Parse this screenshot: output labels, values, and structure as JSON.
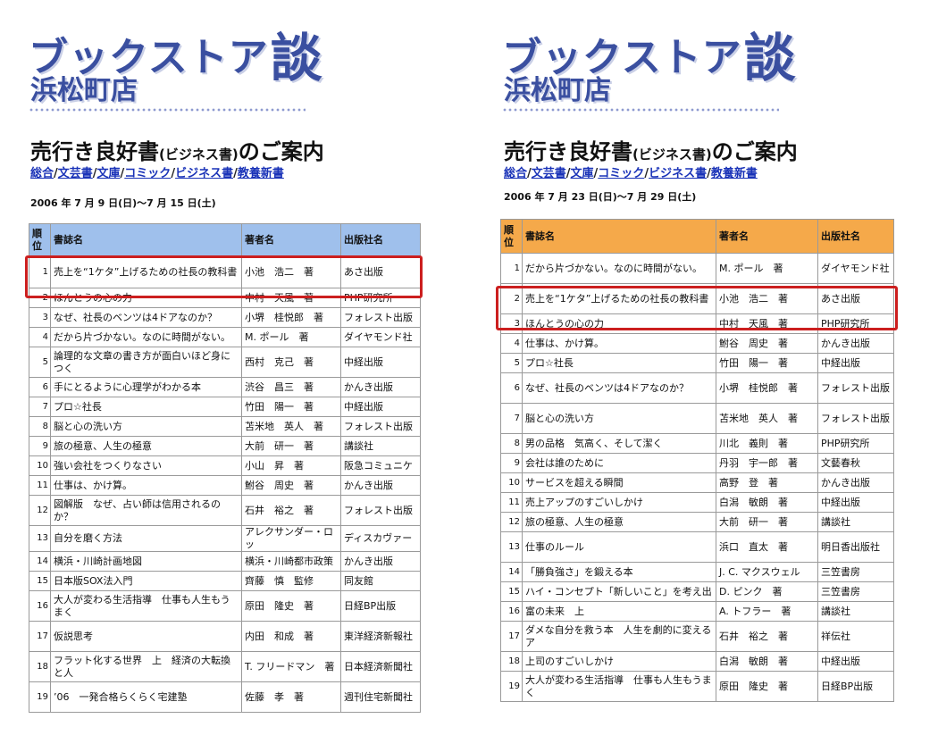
{
  "colors": {
    "brand": "#3a4fa0",
    "left_header": "#9fc0ec",
    "right_header": "#f5a94a",
    "highlight": "#cc1f1f",
    "link": "#1a33b8"
  },
  "panels": [
    {
      "brand_main": "ブックストア",
      "brand_dan": "談",
      "brand_sub": "浜松町店",
      "heading_main": "売行き良好書",
      "heading_paren": "(ビジネス書)",
      "heading_tail": "のご案内",
      "nav": [
        "総合",
        "文芸書",
        "文庫",
        "コミック",
        "ビジネス書",
        "教養新書"
      ],
      "nav_sep": "/",
      "date": "2006 年 7 月 9 日(日)～7 月 15 日(土)",
      "columns": [
        "順位",
        "書誌名",
        "著者名",
        "出版社名"
      ],
      "rows": [
        {
          "rank": "1",
          "title": "売上を“1ケタ”上げるための社長の教科書",
          "author": "小池　浩二　著",
          "publisher": "あさ出版"
        },
        {
          "rank": "2",
          "title": "ほんとうの心の力",
          "author": "中村　天風　著",
          "publisher": "PHP研究所"
        },
        {
          "rank": "3",
          "title": "なぜ、社長のベンツは4ドアなのか？",
          "author": "小堺　桂悦郎　著",
          "publisher": "フォレスト出版"
        },
        {
          "rank": "4",
          "title": "だから片づかない。なのに時間がない。",
          "author": "M. ポール　著",
          "publisher": "ダイヤモンド社"
        },
        {
          "rank": "5",
          "title": "論理的な文章の書き方が面白いほど身につく",
          "author": "西村　克己　著",
          "publisher": "中経出版"
        },
        {
          "rank": "6",
          "title": "手にとるように心理学がわかる本",
          "author": "渋谷　昌三　著",
          "publisher": "かんき出版"
        },
        {
          "rank": "7",
          "title": "プロ☆社長",
          "author": "竹田　陽一　著",
          "publisher": "中経出版"
        },
        {
          "rank": "8",
          "title": "脳と心の洗い方",
          "author": "苫米地　英人　著",
          "publisher": "フォレスト出版"
        },
        {
          "rank": "9",
          "title": "旅の極意、人生の極意",
          "author": "大前　研一　著",
          "publisher": "講談社"
        },
        {
          "rank": "10",
          "title": "強い会社をつくりなさい",
          "author": "小山　昇　著",
          "publisher": "阪急コミュニケ"
        },
        {
          "rank": "11",
          "title": "仕事は、かけ算。",
          "author": "鮒谷　周史　著",
          "publisher": "かんき出版"
        },
        {
          "rank": "12",
          "title": "図解版　なぜ、占い師は信用されるのか？",
          "author": "石井　裕之　著",
          "publisher": "フォレスト出版"
        },
        {
          "rank": "13",
          "title": "自分を磨く方法",
          "author": "アレクサンダー・ロッ",
          "publisher": "ディスカヴァー"
        },
        {
          "rank": "14",
          "title": "横浜・川崎計画地図",
          "author": "横浜・川崎都市政策",
          "publisher": "かんき出版"
        },
        {
          "rank": "15",
          "title": "日本版SOX法入門",
          "author": "齊藤　慎　監修",
          "publisher": "同友館"
        },
        {
          "rank": "16",
          "title": "大人が変わる生活指導　仕事も人生もうまく",
          "author": "原田　隆史　著",
          "publisher": "日経BP出版"
        },
        {
          "rank": "17",
          "title": "仮説思考",
          "author": "内田　和成　著",
          "publisher": "東洋経済新報社"
        },
        {
          "rank": "18",
          "title": "フラット化する世界　上　経済の大転換と人",
          "author": "T. フリードマン　著",
          "publisher": "日本経済新聞社"
        },
        {
          "rank": "19",
          "title": "’06　一発合格らくらく宅建塾",
          "author": "佐藤　孝　著",
          "publisher": "週刊住宅新聞社"
        }
      ]
    },
    {
      "brand_main": "ブックストア",
      "brand_dan": "談",
      "brand_sub": "浜松町店",
      "heading_main": "売行き良好書",
      "heading_paren": "(ビジネス書)",
      "heading_tail": "のご案内",
      "nav": [
        "総合",
        "文芸書",
        "文庫",
        "コミック",
        "ビジネス書",
        "教養新書"
      ],
      "nav_sep": "/",
      "date": "2006 年 7 月 23 日(日)～7 月 29 日(土)",
      "columns": [
        "順位",
        "書誌名",
        "著者名",
        "出版社名"
      ],
      "rows": [
        {
          "rank": "1",
          "title": "だから片づかない。なのに時間がない。",
          "author": "M. ポール　著",
          "publisher": "ダイヤモンド社"
        },
        {
          "rank": "2",
          "title": "売上を“1ケタ”上げるための社長の教科書",
          "author": "小池　浩二　著",
          "publisher": "あさ出版"
        },
        {
          "rank": "3",
          "title": "ほんとうの心の力",
          "author": "中村　天風　著",
          "publisher": "PHP研究所"
        },
        {
          "rank": "4",
          "title": "仕事は、かけ算。",
          "author": "鮒谷　周史　著",
          "publisher": "かんき出版"
        },
        {
          "rank": "5",
          "title": "プロ☆社長",
          "author": "竹田　陽一　著",
          "publisher": "中経出版"
        },
        {
          "rank": "6",
          "title": "なぜ、社長のベンツは4ドアなのか？",
          "author": "小堺　桂悦郎　著",
          "publisher": "フォレスト出版"
        },
        {
          "rank": "7",
          "title": "脳と心の洗い方",
          "author": "苫米地　英人　著",
          "publisher": "フォレスト出版"
        },
        {
          "rank": "8",
          "title": "男の品格　気高く、そして潔く",
          "author": "川北　義則　著",
          "publisher": "PHP研究所"
        },
        {
          "rank": "9",
          "title": "会社は誰のために",
          "author": "丹羽　宇一郎　著",
          "publisher": "文藝春秋"
        },
        {
          "rank": "10",
          "title": "サービスを超える瞬間",
          "author": "高野　登　著",
          "publisher": "かんき出版"
        },
        {
          "rank": "11",
          "title": "売上アップのすごいしかけ",
          "author": "白潟　敏朗　著",
          "publisher": "中経出版"
        },
        {
          "rank": "12",
          "title": "旅の極意、人生の極意",
          "author": "大前　研一　著",
          "publisher": "講談社"
        },
        {
          "rank": "13",
          "title": "仕事のルール",
          "author": "浜口　直太　著",
          "publisher": "明日香出版社"
        },
        {
          "rank": "14",
          "title": "「勝負強さ」を鍛える本",
          "author": "J. C. マクスウェル",
          "publisher": "三笠書房"
        },
        {
          "rank": "15",
          "title": "ハイ・コンセプト「新しいこと」を考え出",
          "author": "D. ピンク　著",
          "publisher": "三笠書房"
        },
        {
          "rank": "16",
          "title": "富の未来　上",
          "author": "A. トフラー　著",
          "publisher": "講談社"
        },
        {
          "rank": "17",
          "title": "ダメな自分を救う本　人生を劇的に変えるア",
          "author": "石井　裕之　著",
          "publisher": "祥伝社"
        },
        {
          "rank": "18",
          "title": "上司のすごいしかけ",
          "author": "白潟　敏朗　著",
          "publisher": "中経出版"
        },
        {
          "rank": "19",
          "title": "大人が変わる生活指導　仕事も人生もうまく",
          "author": "原田　隆史　著",
          "publisher": "日経BP出版"
        }
      ]
    }
  ]
}
